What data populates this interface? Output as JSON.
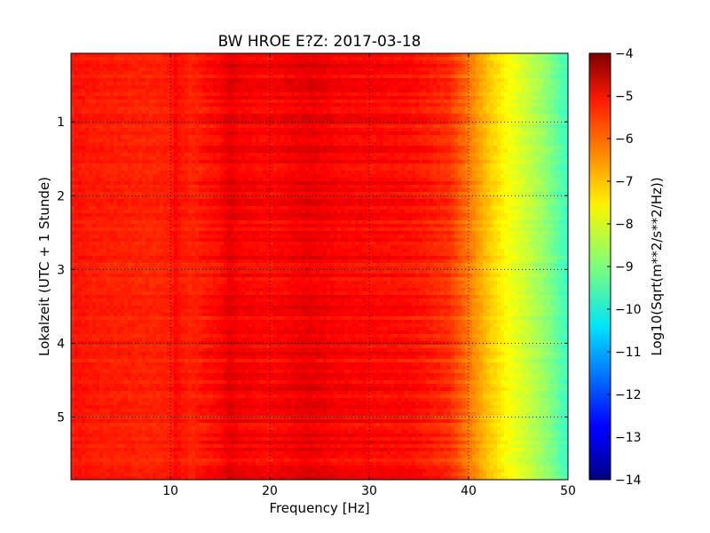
{
  "chart_data": {
    "type": "heatmap",
    "title": "BW HROE E?Z: 2017-03-18",
    "xlabel": "Frequency [Hz]",
    "ylabel": "Lokalzeit (UTC + 1 Stunde)",
    "xlim": [
      0,
      50
    ],
    "ylim": [
      5.85,
      0.07
    ],
    "x_ticks": [
      10,
      20,
      30,
      40,
      50
    ],
    "y_ticks": [
      1,
      2,
      3,
      4,
      5
    ],
    "grid": true,
    "colormap": "jet",
    "colorbar": {
      "label": "Log10(Sqrt(m**2/s**2/Hz))",
      "range": [
        -14,
        -4
      ],
      "ticks": [
        -4,
        -5,
        -6,
        -7,
        -8,
        -9,
        -10,
        -11,
        -12,
        -13,
        -14
      ]
    },
    "spectrum_profile": {
      "frequency_hz": [
        0,
        0.5,
        2,
        8,
        10,
        10.5,
        11,
        12,
        15,
        16,
        17,
        20,
        24,
        27,
        30,
        34,
        38,
        40,
        42,
        44,
        46,
        48,
        50
      ],
      "log10_amplitude": [
        -5.6,
        -5.4,
        -5.5,
        -5.6,
        -5.55,
        -5.3,
        -5.45,
        -5.6,
        -5.3,
        -5.0,
        -5.2,
        -5.3,
        -5.05,
        -5.25,
        -5.3,
        -5.35,
        -5.7,
        -6.4,
        -7.2,
        -7.8,
        -8.3,
        -8.9,
        -9.7
      ]
    }
  }
}
